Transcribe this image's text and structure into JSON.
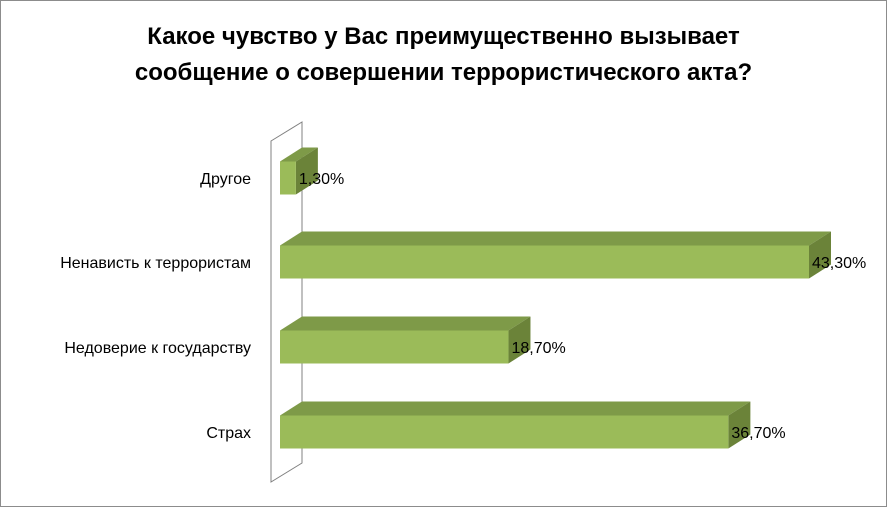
{
  "chart_data": {
    "type": "bar",
    "orientation": "horizontal",
    "title_lines": [
      "Какое чувство у Вас преимущественно вызывает",
      "сообщение о совершении террористического акта?"
    ],
    "categories": [
      "Другое",
      "Ненависть к террористам",
      "Недоверие к государству",
      "Страх"
    ],
    "values": [
      1.3,
      43.3,
      18.7,
      36.7
    ],
    "value_labels": [
      "1,30%",
      "43,30%",
      "18,70%",
      "36,70%"
    ],
    "unit": "%",
    "xlim": [
      0,
      43.3
    ],
    "grid": false,
    "legend": "none",
    "style": "3d",
    "colors": {
      "bar_front": "#9bbb59",
      "bar_top": "#7e9a48",
      "bar_side": "#6b8339",
      "axis_wall": "#808080"
    }
  }
}
